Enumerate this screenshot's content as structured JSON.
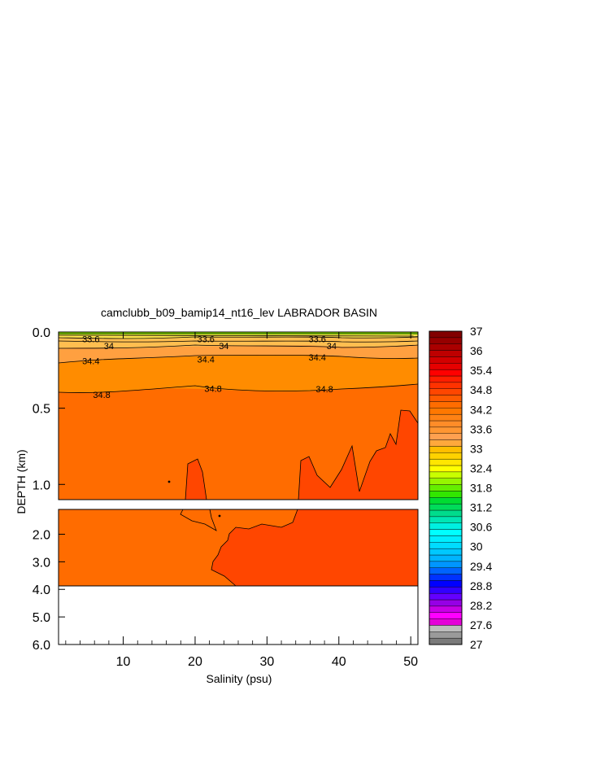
{
  "chart_data": {
    "type": "heatmap",
    "title": "camclubb_b09_bamip14_nt16_lev LABRADOR BASIN",
    "xlabel": "Salinity (psu)",
    "ylabel": "DEPTH (km)",
    "x_range": [
      1,
      51
    ],
    "x_ticks": [
      "10",
      "20",
      "30",
      "40",
      "50"
    ],
    "x_tick_values": [
      10,
      20,
      30,
      40,
      50
    ],
    "y_upper_panel": {
      "range": [
        0.0,
        1.1
      ],
      "ticks": [
        "0.0",
        "0.5",
        "1.0"
      ],
      "tick_values": [
        0.0,
        0.5,
        1.0
      ]
    },
    "y_lower_panel": {
      "range": [
        1.1,
        6.0
      ],
      "ticks": [
        "2.0",
        "3.0",
        "4.0",
        "5.0",
        "6.0"
      ],
      "tick_values": [
        2.0,
        3.0,
        4.0,
        5.0,
        6.0
      ],
      "data_bottom": 3.9
    },
    "contour_labels": [
      {
        "text": "33.6",
        "x": 5.5,
        "y": 0.045
      },
      {
        "text": "34",
        "x": 8.0,
        "y": 0.09
      },
      {
        "text": "33.6",
        "x": 21.5,
        "y": 0.045
      },
      {
        "text": "34",
        "x": 24.0,
        "y": 0.09
      },
      {
        "text": "33.6",
        "x": 37.0,
        "y": 0.045
      },
      {
        "text": "34",
        "x": 39.0,
        "y": 0.09
      },
      {
        "text": "34.4",
        "x": 5.5,
        "y": 0.19
      },
      {
        "text": "34.4",
        "x": 21.5,
        "y": 0.18
      },
      {
        "text": "34.4",
        "x": 37.0,
        "y": 0.165
      },
      {
        "text": "34.8",
        "x": 7.0,
        "y": 0.41
      },
      {
        "text": "34.8",
        "x": 22.5,
        "y": 0.37
      },
      {
        "text": "34.8",
        "x": 38.0,
        "y": 0.375
      }
    ],
    "colorbar": {
      "labels": [
        "37",
        "36",
        "35.4",
        "34.8",
        "34.2",
        "33.6",
        "33",
        "32.4",
        "31.8",
        "31.2",
        "30.6",
        "30",
        "29.4",
        "28.8",
        "28.2",
        "27.6",
        "27"
      ],
      "colors": [
        "#7a7a7a",
        "#9a9a9a",
        "#bdbdbd",
        "#e400d8",
        "#ff00ff",
        "#c800e6",
        "#9600e6",
        "#6400ff",
        "#3200ff",
        "#0000ff",
        "#0032ff",
        "#0064ff",
        "#0096ff",
        "#00b4ff",
        "#00c8ff",
        "#00dcff",
        "#00eeff",
        "#00ffff",
        "#00f0e0",
        "#00e6b4",
        "#00dc8c",
        "#00dc5a",
        "#00dc32",
        "#32e600",
        "#64ee00",
        "#96f500",
        "#c8ff00",
        "#ffff00",
        "#ffe600",
        "#ffd200",
        "#ffbe00",
        "#ffa83c",
        "#ffa050",
        "#ff9632",
        "#ff8c28",
        "#ff8214",
        "#ff7800",
        "#ff6c00",
        "#ff5a00",
        "#ff4600",
        "#ff3200",
        "#ff1e00",
        "#ff0000",
        "#e60000",
        "#d20000",
        "#be0000",
        "#aa0000",
        "#960000",
        "#820000"
      ]
    }
  }
}
